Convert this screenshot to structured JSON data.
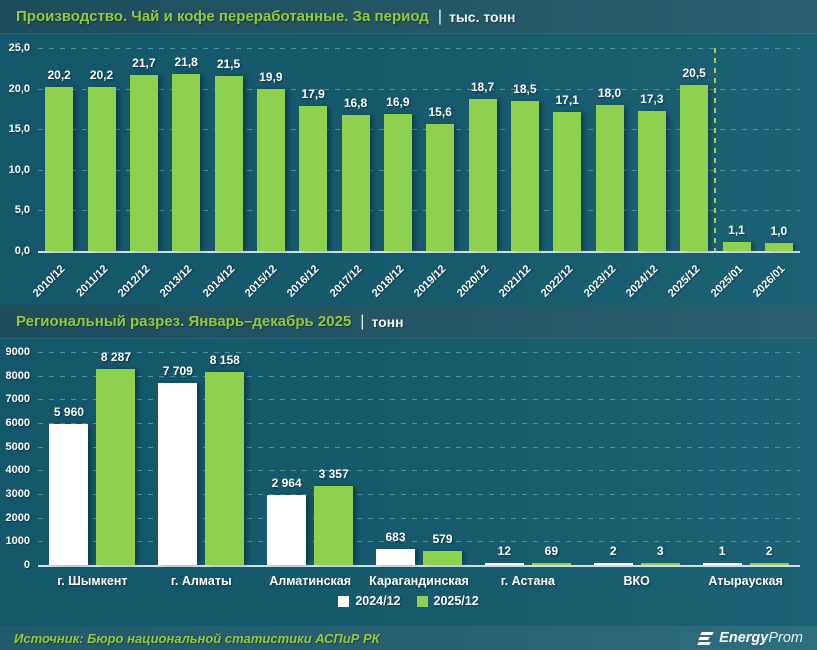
{
  "colors": {
    "background": "#175a6d",
    "band": "#245766",
    "accent_green": "#8dd14f",
    "title_green": "#97c93e",
    "gridline": "#4d93a8",
    "axis": "#cfe0e5",
    "label_white": "#ffffff"
  },
  "chart_data": [
    {
      "type": "bar",
      "title": "Производство. Чай и кофе переработанные. За период",
      "separator": "|",
      "unit": "тыс. тонн",
      "xlabel": "",
      "ylabel": "тыс. тонн",
      "ylim": [
        0,
        25
      ],
      "yticks": [
        "25,0",
        "20,0",
        "15,0",
        "10,0",
        "5,0",
        "0,0"
      ],
      "grid": true,
      "bar_color": "#8dd14f",
      "categories": [
        "2010/12",
        "2011/12",
        "2012/12",
        "2013/12",
        "2014/12",
        "2015/12",
        "2016/12",
        "2017/12",
        "2018/12",
        "2019/12",
        "2020/12",
        "2021/12",
        "2022/12",
        "2023/12",
        "2024/12",
        "2025/12",
        "2025/01",
        "2026/01"
      ],
      "values": [
        20.2,
        20.2,
        21.7,
        21.8,
        21.5,
        19.9,
        17.9,
        16.8,
        16.9,
        15.6,
        18.7,
        18.5,
        17.1,
        18.0,
        17.3,
        20.5,
        1.1,
        1.0
      ],
      "value_labels": [
        "20,2",
        "20,2",
        "21,7",
        "21,8",
        "21,5",
        "19,9",
        "17,9",
        "16,8",
        "16,9",
        "15,6",
        "18,7",
        "18,5",
        "17,1",
        "18,0",
        "17,3",
        "20,5",
        "1,1",
        "1,0"
      ],
      "divider_after_category": "2025/12"
    },
    {
      "type": "bar",
      "title": "Региональный разрез. Январь–декабрь 2025",
      "separator": "|",
      "unit": "тонн",
      "xlabel": "",
      "ylabel": "тонн",
      "ylim": [
        0,
        9000
      ],
      "yticks": [
        "9000",
        "8000",
        "7000",
        "6000",
        "5000",
        "4000",
        "3000",
        "2000",
        "1000",
        "0"
      ],
      "grid": true,
      "legend_position": "bottom",
      "categories": [
        "г. Шымкент",
        "г. Алматы",
        "Алматинская",
        "Карагандинская",
        "г. Астана",
        "ВКО",
        "Атырауская"
      ],
      "series": [
        {
          "name": "2024/12",
          "color": "#ffffff",
          "values": [
            5960,
            7709,
            2964,
            683,
            12,
            2,
            1
          ],
          "value_labels": [
            "5 960",
            "7 709",
            "2 964",
            "683",
            "12",
            "2",
            "1"
          ]
        },
        {
          "name": "2025/12",
          "color": "#8dd14f",
          "values": [
            8287,
            8158,
            3357,
            579,
            69,
            3,
            2
          ],
          "value_labels": [
            "8 287",
            "8 158",
            "3 357",
            "579",
            "69",
            "3",
            "2"
          ]
        }
      ]
    }
  ],
  "footer": {
    "source": "Источник: Бюро национальной статистики АСПиР РК",
    "logo_bold": "Energy",
    "logo_light": "Prom"
  }
}
